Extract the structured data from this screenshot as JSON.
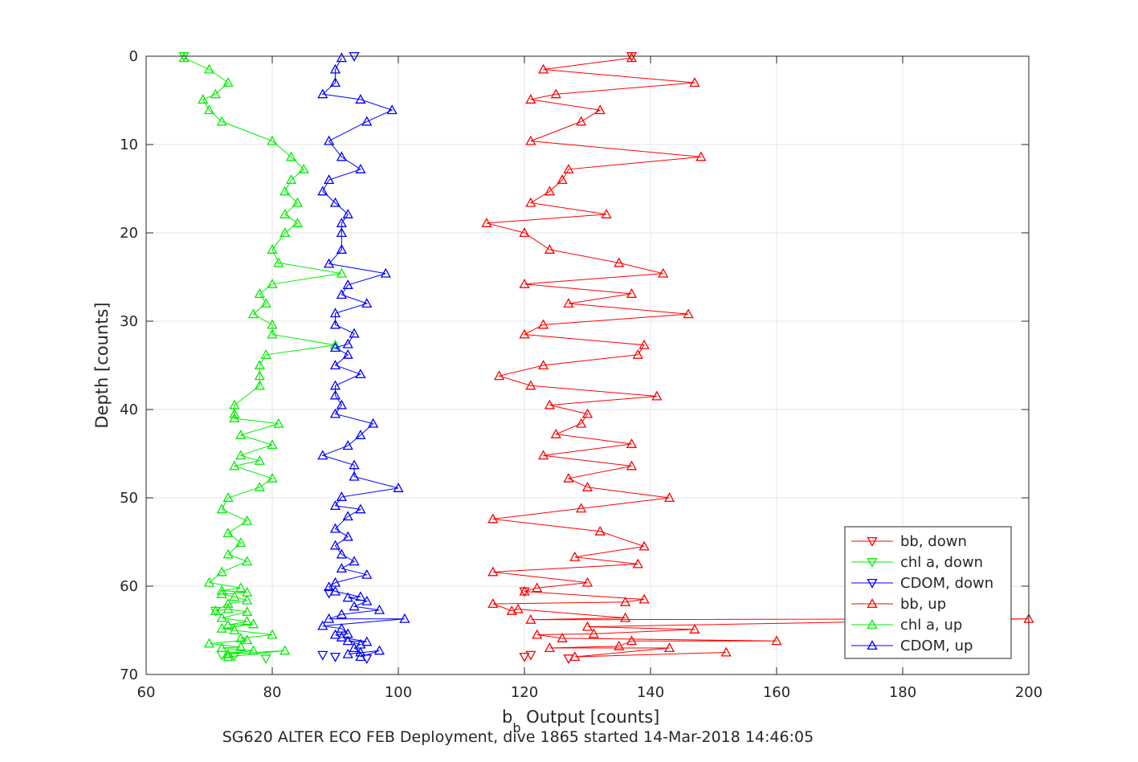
{
  "chart_data": {
    "type": "line",
    "title": "",
    "xlabel": {
      "main": "b",
      "subscript": "b",
      "rest": " Output [counts]"
    },
    "ylabel": "Depth [counts]",
    "footer": "SG620 ALTER ECO FEB Deployment, dive 1865 started 14-Mar-2018 14:46:05",
    "xlim": [
      60,
      200
    ],
    "ylim": [
      0,
      70
    ],
    "y_reversed": true,
    "grid": true,
    "legend_position": "bottom-right",
    "x_ticks": [
      "60",
      "80",
      "100",
      "120",
      "140",
      "160",
      "180",
      "200"
    ],
    "y_ticks": [
      "0",
      "10",
      "20",
      "30",
      "40",
      "50",
      "60",
      "70"
    ],
    "series": [
      {
        "name": "bb, down",
        "color": "#ff0000",
        "marker": "triangle-down",
        "points": [
          [
            137,
            0
          ],
          [
            120,
            60.6
          ],
          [
            127,
            68.2
          ],
          [
            121,
            67.8
          ],
          [
            120,
            68.0
          ]
        ]
      },
      {
        "name": "chl a, down",
        "color": "#00ee00",
        "marker": "triangle-down",
        "points": [
          [
            66,
            0
          ],
          [
            71,
            62.8
          ],
          [
            72,
            67.8
          ],
          [
            74,
            67.9
          ],
          [
            79,
            68.2
          ]
        ]
      },
      {
        "name": "CDOM, down",
        "color": "#0000ff",
        "marker": "triangle-down",
        "points": [
          [
            93,
            0
          ],
          [
            89,
            60.8
          ],
          [
            88,
            67.8
          ],
          [
            90,
            68.0
          ],
          [
            95,
            68.2
          ]
        ]
      },
      {
        "name": "bb, up",
        "color": "#ff0000",
        "marker": "triangle-up",
        "points": [
          [
            152,
            67.5
          ],
          [
            128,
            68.0
          ],
          [
            143,
            67.0
          ],
          [
            124,
            67.0
          ],
          [
            135,
            66.8
          ],
          [
            137,
            66.2
          ],
          [
            160,
            66.2
          ],
          [
            126,
            65.9
          ],
          [
            122,
            65.5
          ],
          [
            131,
            65.4
          ],
          [
            147,
            64.9
          ],
          [
            130,
            64.6
          ],
          [
            200,
            63.7
          ],
          [
            121,
            63.8
          ],
          [
            136,
            63.6
          ],
          [
            119,
            62.6
          ],
          [
            118,
            62.8
          ],
          [
            115,
            62.0
          ],
          [
            136,
            61.8
          ],
          [
            139,
            61.5
          ],
          [
            120,
            60.6
          ],
          [
            122,
            60.2
          ],
          [
            130,
            59.6
          ],
          [
            115,
            58.4
          ],
          [
            138,
            57.5
          ],
          [
            128,
            56.7
          ],
          [
            139,
            55.5
          ],
          [
            132,
            53.8
          ],
          [
            115,
            52.4
          ],
          [
            129,
            51.2
          ],
          [
            143,
            50.0
          ],
          [
            130,
            48.8
          ],
          [
            127,
            47.8
          ],
          [
            137,
            46.4
          ],
          [
            123,
            45.2
          ],
          [
            137,
            43.9
          ],
          [
            125,
            42.8
          ],
          [
            129,
            41.6
          ],
          [
            130,
            40.5
          ],
          [
            124,
            39.5
          ],
          [
            141,
            38.5
          ],
          [
            121,
            37.3
          ],
          [
            116,
            36.2
          ],
          [
            123,
            35.0
          ],
          [
            138,
            33.8
          ],
          [
            139,
            32.7
          ],
          [
            120,
            31.5
          ],
          [
            123,
            30.4
          ],
          [
            146,
            29.2
          ],
          [
            127,
            28.0
          ],
          [
            137,
            26.9
          ],
          [
            120,
            25.8
          ],
          [
            142,
            24.6
          ],
          [
            135,
            23.4
          ],
          [
            124,
            21.9
          ],
          [
            120,
            20.0
          ],
          [
            114,
            18.9
          ],
          [
            133,
            17.9
          ],
          [
            121,
            16.6
          ],
          [
            124,
            15.3
          ],
          [
            126,
            14.0
          ],
          [
            127,
            12.8
          ],
          [
            148,
            11.4
          ],
          [
            121,
            9.6
          ],
          [
            129,
            7.4
          ],
          [
            132,
            6.1
          ],
          [
            121,
            4.9
          ],
          [
            125,
            4.3
          ],
          [
            147,
            3.0
          ],
          [
            123,
            1.5
          ],
          [
            137,
            0.2
          ]
        ]
      },
      {
        "name": "chl a, up",
        "color": "#00ee00",
        "marker": "triangle-up",
        "points": [
          [
            73,
            68.0
          ],
          [
            82,
            67.3
          ],
          [
            73,
            67.7
          ],
          [
            77,
            67.3
          ],
          [
            72,
            67.0
          ],
          [
            75,
            66.9
          ],
          [
            70,
            66.5
          ],
          [
            76,
            66.1
          ],
          [
            75,
            65.9
          ],
          [
            80,
            65.5
          ],
          [
            74,
            65.0
          ],
          [
            72,
            64.8
          ],
          [
            77,
            64.3
          ],
          [
            73,
            64.4
          ],
          [
            76,
            64.0
          ],
          [
            72,
            63.6
          ],
          [
            76,
            62.9
          ],
          [
            73,
            62.6
          ],
          [
            71,
            62.8
          ],
          [
            73,
            62.0
          ],
          [
            76,
            61.6
          ],
          [
            74,
            61.2
          ],
          [
            72,
            60.9
          ],
          [
            76,
            60.7
          ],
          [
            72,
            60.5
          ],
          [
            75,
            60.2
          ],
          [
            70,
            59.6
          ],
          [
            72,
            58.4
          ],
          [
            76,
            57.2
          ],
          [
            73,
            56.4
          ],
          [
            75,
            55.1
          ],
          [
            73,
            54.0
          ],
          [
            76,
            52.6
          ],
          [
            72,
            51.3
          ],
          [
            73,
            50.0
          ],
          [
            78,
            48.8
          ],
          [
            80,
            47.8
          ],
          [
            74,
            46.4
          ],
          [
            78,
            45.8
          ],
          [
            75,
            45.2
          ],
          [
            80,
            44.0
          ],
          [
            75,
            42.9
          ],
          [
            81,
            41.6
          ],
          [
            74,
            41.0
          ],
          [
            74,
            40.5
          ],
          [
            74,
            39.5
          ],
          [
            78,
            37.3
          ],
          [
            78,
            36.2
          ],
          [
            78,
            35.0
          ],
          [
            79,
            33.8
          ],
          [
            90,
            32.7
          ],
          [
            80,
            31.5
          ],
          [
            80,
            30.4
          ],
          [
            77,
            29.2
          ],
          [
            79,
            28.0
          ],
          [
            78,
            26.9
          ],
          [
            80,
            25.8
          ],
          [
            91,
            24.6
          ],
          [
            81,
            23.4
          ],
          [
            80,
            21.9
          ],
          [
            82,
            20.0
          ],
          [
            84,
            18.9
          ],
          [
            82,
            17.9
          ],
          [
            84,
            16.6
          ],
          [
            82,
            15.3
          ],
          [
            83,
            14.0
          ],
          [
            85,
            12.8
          ],
          [
            83,
            11.4
          ],
          [
            80,
            9.6
          ],
          [
            72,
            7.4
          ],
          [
            70,
            6.1
          ],
          [
            69,
            4.9
          ],
          [
            71,
            4.3
          ],
          [
            73,
            3.0
          ],
          [
            70,
            1.5
          ],
          [
            66,
            0.2
          ]
        ]
      },
      {
        "name": "CDOM, up",
        "color": "#0000ff",
        "marker": "triangle-up",
        "points": [
          [
            94,
            68.0
          ],
          [
            97,
            67.3
          ],
          [
            92,
            67.7
          ],
          [
            94,
            67.5
          ],
          [
            93,
            67.0
          ],
          [
            94,
            66.6
          ],
          [
            92,
            66.2
          ],
          [
            95,
            66.3
          ],
          [
            91,
            65.8
          ],
          [
            90,
            65.5
          ],
          [
            92,
            65.4
          ],
          [
            91,
            64.8
          ],
          [
            88,
            64.5
          ],
          [
            101,
            63.7
          ],
          [
            89,
            63.7
          ],
          [
            91,
            63.2
          ],
          [
            97,
            62.7
          ],
          [
            93,
            62.3
          ],
          [
            95,
            61.7
          ],
          [
            92,
            61.3
          ],
          [
            94,
            61.2
          ],
          [
            90,
            60.6
          ],
          [
            89,
            60.1
          ],
          [
            90,
            59.6
          ],
          [
            95,
            58.7
          ],
          [
            91,
            58.0
          ],
          [
            93,
            57.2
          ],
          [
            91,
            56.4
          ],
          [
            90,
            55.4
          ],
          [
            92,
            54.4
          ],
          [
            90,
            53.5
          ],
          [
            92,
            52.1
          ],
          [
            94,
            51.3
          ],
          [
            90,
            50.9
          ],
          [
            91,
            49.9
          ],
          [
            100,
            48.9
          ],
          [
            93,
            47.6
          ],
          [
            93,
            46.3
          ],
          [
            88,
            45.2
          ],
          [
            92,
            44.1
          ],
          [
            94,
            42.9
          ],
          [
            96,
            41.6
          ],
          [
            90,
            40.5
          ],
          [
            91,
            39.5
          ],
          [
            90,
            38.4
          ],
          [
            90,
            37.3
          ],
          [
            94,
            36.0
          ],
          [
            90,
            35.0
          ],
          [
            92,
            33.8
          ],
          [
            90,
            33.0
          ],
          [
            92,
            32.6
          ],
          [
            93,
            31.4
          ],
          [
            90,
            30.4
          ],
          [
            90,
            29.1
          ],
          [
            95,
            28.0
          ],
          [
            91,
            27.0
          ],
          [
            92,
            25.9
          ],
          [
            98,
            24.6
          ],
          [
            89,
            23.5
          ],
          [
            91,
            21.9
          ],
          [
            91,
            20.0
          ],
          [
            91,
            18.9
          ],
          [
            92,
            17.9
          ],
          [
            90,
            16.6
          ],
          [
            88,
            15.3
          ],
          [
            89,
            14.0
          ],
          [
            94,
            12.8
          ],
          [
            91,
            11.4
          ],
          [
            89,
            9.6
          ],
          [
            95,
            7.4
          ],
          [
            99,
            6.1
          ],
          [
            94,
            4.9
          ],
          [
            88,
            4.3
          ],
          [
            90,
            3.0
          ],
          [
            90,
            1.5
          ],
          [
            91,
            0.2
          ]
        ]
      }
    ]
  }
}
